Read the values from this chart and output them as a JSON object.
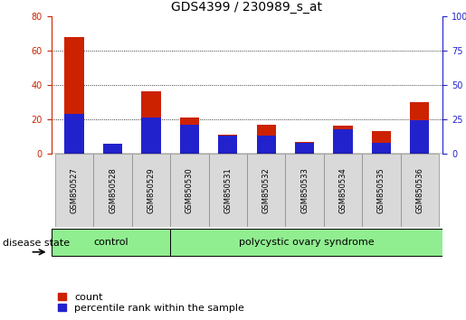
{
  "title": "GDS4399 / 230989_s_at",
  "samples": [
    "GSM850527",
    "GSM850528",
    "GSM850529",
    "GSM850530",
    "GSM850531",
    "GSM850532",
    "GSM850533",
    "GSM850534",
    "GSM850535",
    "GSM850536"
  ],
  "count_values": [
    68,
    5,
    36,
    21,
    11,
    17,
    7,
    16,
    13,
    30
  ],
  "percentile_values": [
    29,
    7,
    26,
    21,
    13,
    13,
    8,
    18,
    8,
    24
  ],
  "count_color": "#cc2200",
  "percentile_color": "#2222cc",
  "bar_width": 0.5,
  "ylim_left": [
    0,
    80
  ],
  "ylim_right": [
    0,
    100
  ],
  "yticks_left": [
    0,
    20,
    40,
    60,
    80
  ],
  "yticks_right": [
    0,
    25,
    50,
    75,
    100
  ],
  "control_label": "control",
  "disease_label": "polycystic ovary syndrome",
  "disease_state_label": "disease state",
  "legend_count": "count",
  "legend_percentile": "percentile rank within the sample",
  "bg_color": "#ffffff",
  "tick_bg_color": "#d9d9d9",
  "green_color": "#90ee90",
  "title_fontsize": 10,
  "axis_fontsize": 7,
  "label_fontsize": 8
}
